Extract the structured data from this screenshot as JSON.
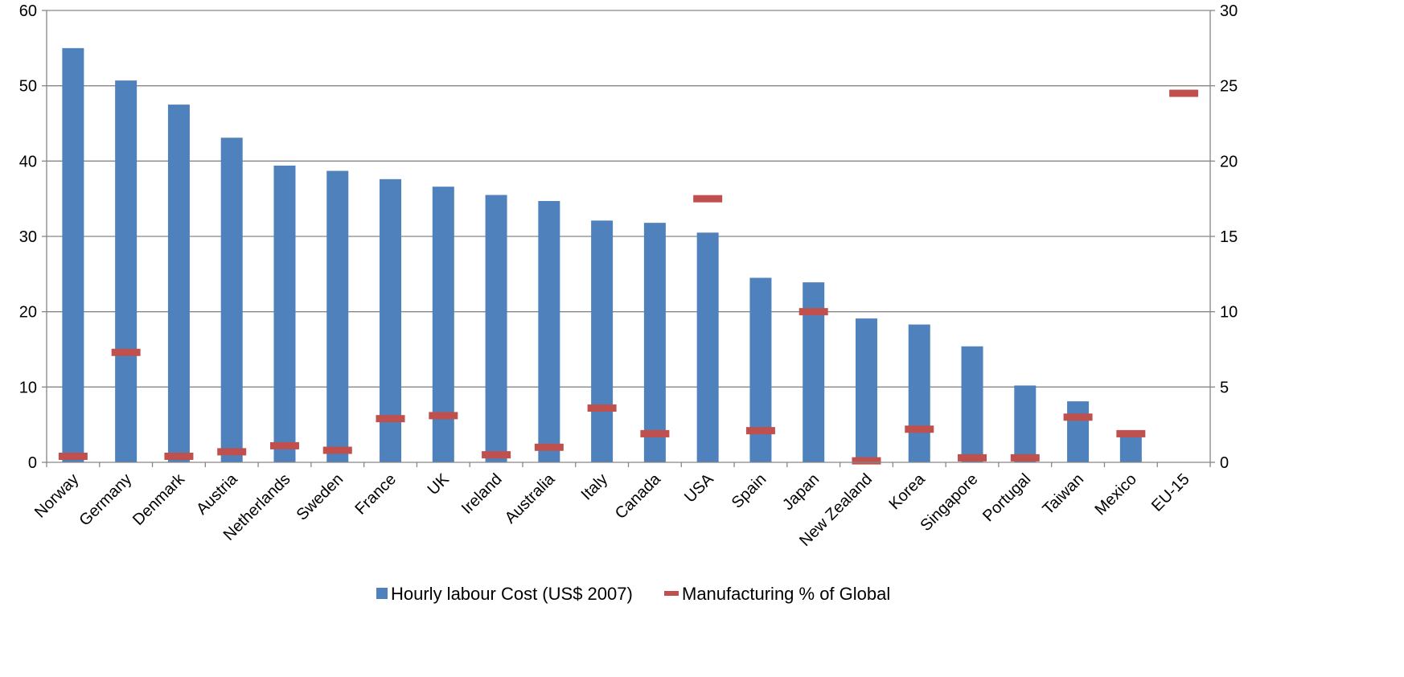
{
  "chart_data": {
    "type": "bar",
    "categories": [
      "Norway",
      "Germany",
      "Denmark",
      "Austria",
      "Netherlands",
      "Sweden",
      "France",
      "UK",
      "Ireland",
      "Australia",
      "Italy",
      "Canada",
      "USA",
      "Spain",
      "Japan",
      "New Zealand",
      "Korea",
      "Singapore",
      "Portugal",
      "Taiwan",
      "Mexico",
      "EU-15"
    ],
    "series": [
      {
        "name": "Hourly labour Cost (US$ 2007)",
        "kind": "bar",
        "axis": "left",
        "color": "#4F81BD",
        "values": [
          55.0,
          50.7,
          47.5,
          43.1,
          39.4,
          38.7,
          37.6,
          36.6,
          35.5,
          34.7,
          32.1,
          31.8,
          30.5,
          24.5,
          23.9,
          19.1,
          18.3,
          15.4,
          10.2,
          8.1,
          3.9,
          null
        ]
      },
      {
        "name": "Manufacturing % of Global",
        "kind": "marker",
        "axis": "right",
        "color": "#C0504D",
        "values": [
          0.4,
          7.3,
          0.4,
          0.7,
          1.1,
          0.8,
          2.9,
          3.1,
          0.5,
          1.0,
          3.6,
          1.9,
          17.5,
          2.1,
          10.0,
          0.1,
          2.2,
          0.3,
          0.3,
          3.0,
          1.9,
          24.5
        ]
      }
    ],
    "y_left": {
      "min": 0,
      "max": 60,
      "step": 10,
      "ticks": [
        "0",
        "10",
        "20",
        "30",
        "40",
        "50",
        "60"
      ]
    },
    "y_right": {
      "min": 0,
      "max": 30,
      "step": 5,
      "ticks": [
        "0",
        "5",
        "10",
        "15",
        "20",
        "25",
        "30"
      ]
    },
    "grid": true,
    "legend_position": "bottom",
    "title": "",
    "xlabel": "",
    "ylabel": ""
  }
}
